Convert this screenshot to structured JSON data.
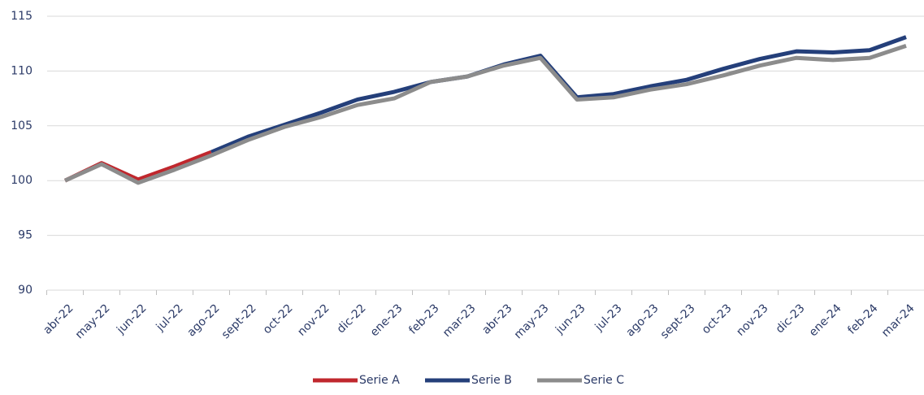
{
  "chart_data": {
    "type": "line",
    "categories": [
      "abr-22",
      "may-22",
      "jun-22",
      "jul-22",
      "ago-22",
      "sept-22",
      "oct-22",
      "nov-22",
      "dic-22",
      "ene-23",
      "feb-23",
      "mar-23",
      "abr-23",
      "may-23",
      "jun-23",
      "jul-23",
      "ago-23",
      "sept-23",
      "oct-23",
      "nov-23",
      "dic-23",
      "ene-24",
      "feb-24",
      "mar-24"
    ],
    "series": [
      {
        "name": "Serie A",
        "color": "#c0272d",
        "values": [
          100,
          101.6,
          100.1,
          101.3,
          102.6,
          null,
          null,
          null,
          null,
          null,
          null,
          null,
          null,
          null,
          null,
          null,
          null,
          null,
          null,
          null,
          null,
          null,
          null,
          null
        ]
      },
      {
        "name": "Serie B",
        "color": "#243f7a",
        "values": [
          null,
          null,
          null,
          null,
          102.6,
          104.0,
          105.1,
          106.2,
          107.4,
          108.1,
          109.0,
          109.5,
          110.6,
          111.4,
          107.6,
          107.9,
          108.6,
          109.2,
          110.2,
          111.1,
          111.8,
          111.7,
          111.9,
          113.1
        ]
      },
      {
        "name": "Serie C",
        "color": "#8c8c8c",
        "values": [
          100,
          101.5,
          99.8,
          101.0,
          102.3,
          103.7,
          104.9,
          105.8,
          106.9,
          107.5,
          109.0,
          109.5,
          110.5,
          111.2,
          107.4,
          107.6,
          108.3,
          108.8,
          109.6,
          110.5,
          111.2,
          111.0,
          111.2,
          112.3
        ]
      }
    ],
    "ylim": [
      90,
      115
    ],
    "yticks": [
      90,
      95,
      100,
      105,
      110,
      115
    ],
    "grid": true,
    "legend": "bottom"
  }
}
